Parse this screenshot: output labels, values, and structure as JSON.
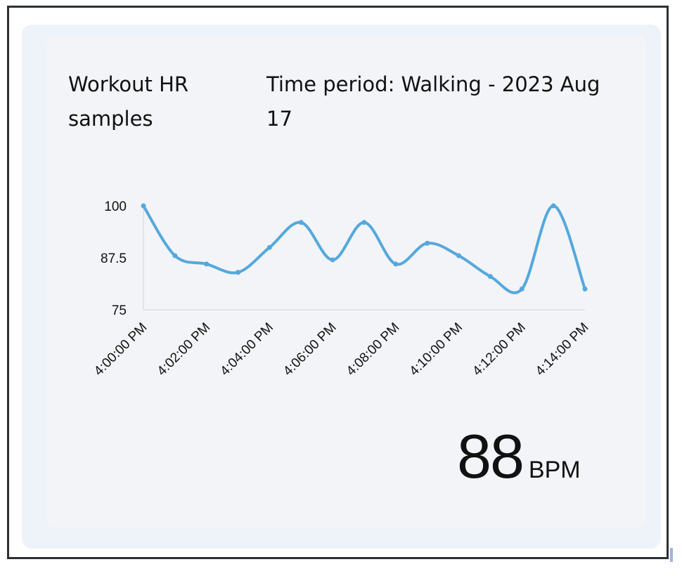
{
  "header": {
    "title": "Workout HR samples",
    "period": "Time period: Walking - 2023 Aug 17"
  },
  "reading": {
    "value": "88",
    "unit": "BPM"
  },
  "chart_data": {
    "type": "line",
    "title": "Workout HR samples",
    "xlabel": "",
    "ylabel": "",
    "ylim": [
      75,
      100
    ],
    "yticks": [
      "75",
      "87.5",
      "100"
    ],
    "xticks": [
      "4:00:00 PM",
      "4:02:00 PM",
      "4:04:00 PM",
      "4:06:00 PM",
      "4:08:00 PM",
      "4:10:00 PM",
      "4:12:00 PM",
      "4:14:00 PM"
    ],
    "line_color": "#55a8dc",
    "series": [
      {
        "name": "HR",
        "x": [
          "4:00:00 PM",
          "4:01:00 PM",
          "4:02:00 PM",
          "4:03:00 PM",
          "4:04:00 PM",
          "4:05:00 PM",
          "4:06:00 PM",
          "4:07:00 PM",
          "4:08:00 PM",
          "4:09:00 PM",
          "4:10:00 PM",
          "4:11:00 PM",
          "4:12:00 PM",
          "4:13:00 PM",
          "4:14:00 PM"
        ],
        "values": [
          100,
          88,
          86,
          84,
          90,
          96,
          87,
          96,
          86,
          91,
          88,
          83,
          80,
          100,
          80
        ]
      }
    ]
  }
}
